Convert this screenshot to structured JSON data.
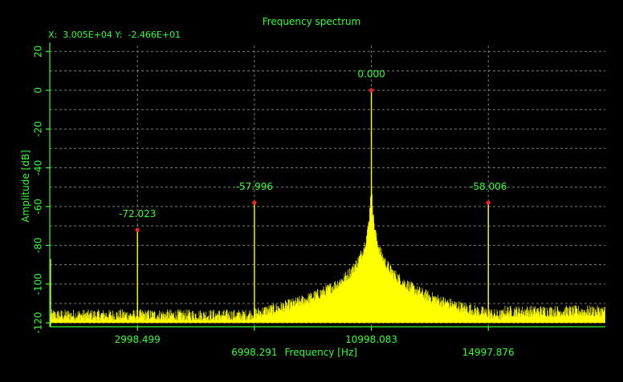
{
  "title": "Frequency spectrum",
  "readout": {
    "x_label": "X:",
    "x_value": "3.005E+04",
    "y_label": "Y:",
    "y_value": "-2.466E+01"
  },
  "colors": {
    "background": "#000000",
    "axis_text": "#33ff33",
    "spectrum": "#ffff00",
    "marker": "#ff2020",
    "grid": "#7a7a7a"
  },
  "chart_data": {
    "type": "line",
    "xlabel": "Frequency [Hz]",
    "ylabel": "Amplitude [dB]",
    "xlim": [
      0,
      19000
    ],
    "ylim": [
      -122,
      23
    ],
    "grid": true,
    "x_ticks": [
      2998.499,
      6998.291,
      10998.083,
      14997.876
    ],
    "x_tick_labels": [
      "2998.499",
      "6998.291",
      "10998.083",
      "14997.876"
    ],
    "y_ticks": [
      20,
      0,
      -20,
      -40,
      -60,
      -80,
      -100,
      -120
    ],
    "y_tick_labels": [
      "20",
      "0",
      "-20",
      "-40",
      "-60",
      "-80",
      "-100",
      "-120"
    ],
    "noise_floor_db": -119,
    "peaks": [
      {
        "x": 2998.499,
        "y": -72.023,
        "label": "-72.023"
      },
      {
        "x": 6998.291,
        "y": -57.996,
        "label": "-57.996"
      },
      {
        "x": 10998.083,
        "y": 0.0,
        "label": "0.000"
      },
      {
        "x": 14997.876,
        "y": -58.006,
        "label": "-58.006"
      }
    ]
  }
}
